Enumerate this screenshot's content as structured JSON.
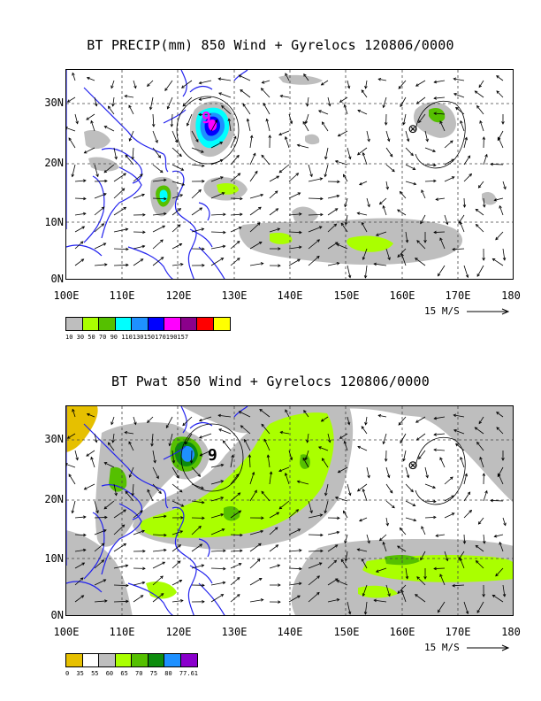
{
  "colors": {
    "coast": "#2222ee",
    "grid": "#444444",
    "precip_scale": [
      "#bebebe",
      "#aaff00",
      "#55c000",
      "#00ffff",
      "#1e90ff",
      "#0000ff",
      "#ff00ff",
      "#8b008b",
      "#ff0000",
      "#ffff00"
    ],
    "pwat_scale": [
      "#e6c000",
      "#ffffff",
      "#bebebe",
      "#aaff00",
      "#55c000",
      "#0d8c0d",
      "#1e90ff",
      "#8a00cc"
    ]
  },
  "lat_labels": [
    "30N",
    "20N",
    "10N",
    "0N"
  ],
  "lon_labels": [
    "100E",
    "110E",
    "120E",
    "130E",
    "140E",
    "150E",
    "160E",
    "170E",
    "180"
  ],
  "panel_top": {
    "title": "BT PRECIP(mm) 850 Wind + Gyrelocs 120806/0000",
    "ref_vector": "15 M/S",
    "colorbar_labels": "10 30 50 70 90 110130150170190157",
    "markers": [
      "⊗",
      "9"
    ]
  },
  "panel_bottom": {
    "title": "BT Pwat 850 Wind + Gyrelocs 120806/0000",
    "ref_vector": "15 M/S",
    "colorbar_labels": "0  35  55  60  65  70  75  80 77.61",
    "markers": [
      "⊗",
      "9"
    ]
  },
  "icons": {
    "gyre": "gyre-marker-icon",
    "storm": "storm-symbol-icon"
  }
}
